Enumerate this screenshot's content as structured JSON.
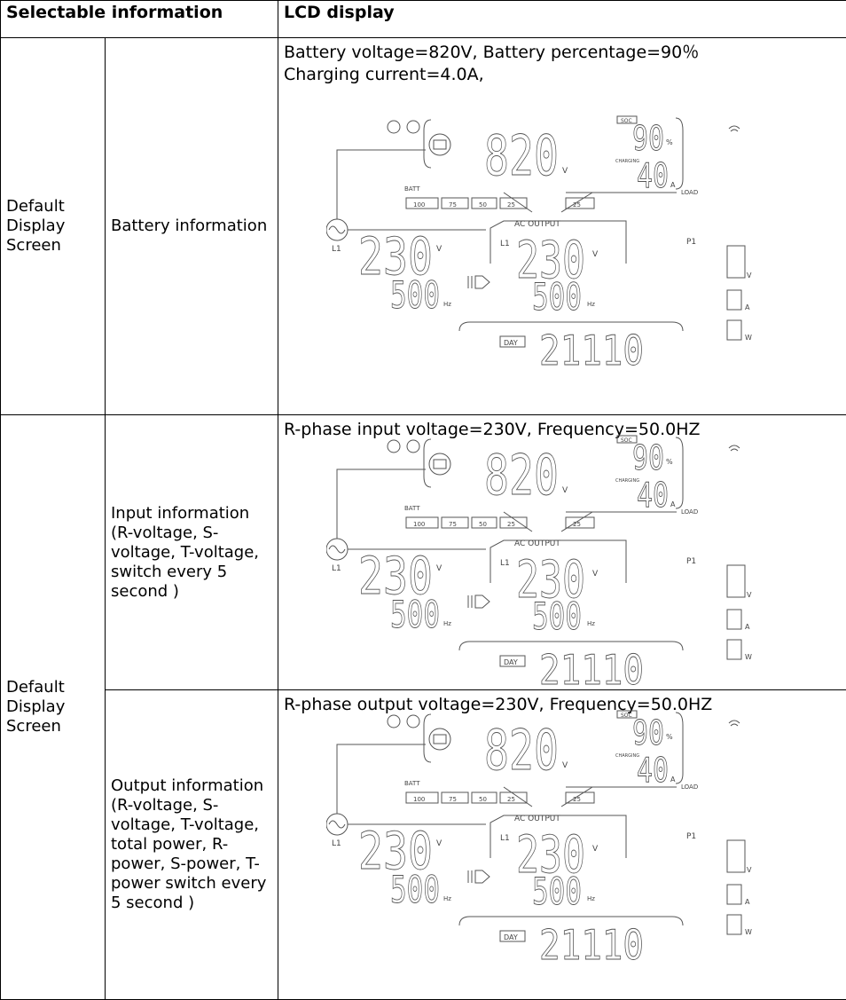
{
  "header": {
    "col1": "Selectable information",
    "col2": "LCD display"
  },
  "rows": [
    {
      "group": "Default Display Screen",
      "item": "Battery information",
      "caption": [
        "Battery voltage=820V, Battery percentage=90％",
        "Charging current=4.0A,"
      ]
    },
    {
      "group": "Default Display Screen",
      "item": "Input information (R-voltage, S-voltage, T-voltage, switch every 5 second )",
      "caption": [
        "R-phase input voltage=230V, Frequency=50.0HZ"
      ]
    },
    {
      "item": "Output information (R-voltage, S-voltage, T-voltage, total power, R-power, S-power, T-power switch every 5 second )",
      "caption": [
        "R-phase output voltage=230V, Frequency=50.0HZ"
      ]
    }
  ],
  "lcd": {
    "soc": "SOC",
    "charging": "CHARGING",
    "batt": "BATT",
    "load": "LOAD",
    "ac_output": "AC OUTPUT",
    "l1": "L1",
    "p1": "P1",
    "day": "DAY",
    "levels": [
      "100",
      "75",
      "50",
      "25",
      "25"
    ],
    "units": {
      "v": "V",
      "pct": "%",
      "a": "A",
      "hz": "Hz",
      "w": "W"
    },
    "digits": {
      "battery": "820",
      "soc": "90",
      "current": "40",
      "input": "230",
      "output": "230",
      "in_freq": "500",
      "out_freq": "500",
      "clock": "21110"
    }
  }
}
